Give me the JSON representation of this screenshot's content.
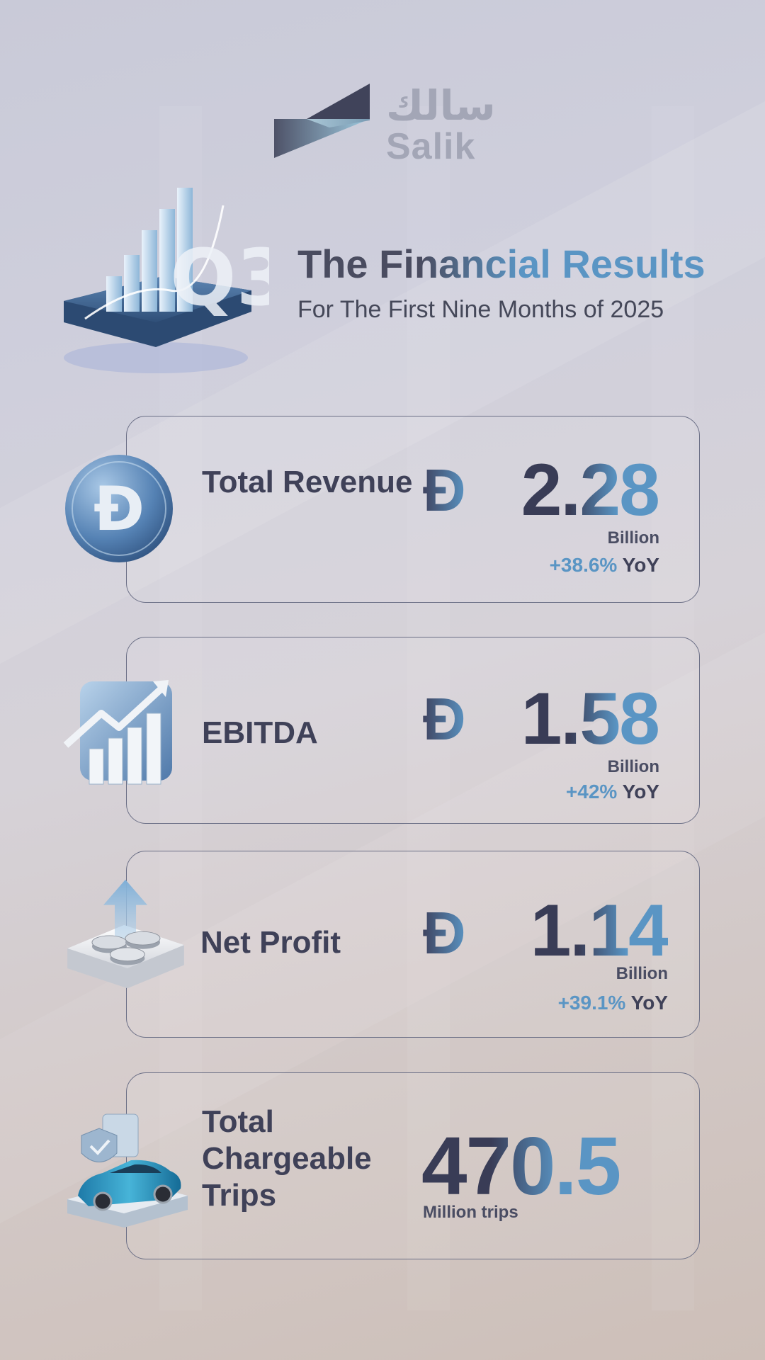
{
  "brand": {
    "name_ar": "سالك",
    "name_en": "Salik",
    "colors": {
      "dark": "#3f4158",
      "accent": "#5a95c4"
    }
  },
  "header": {
    "title": "The Financial Results",
    "subtitle": "For The First Nine Months of 2025",
    "badge": "Q3",
    "illustration": "q3-bar-chart-icon"
  },
  "metrics": [
    {
      "label": "Total Revenue",
      "currency_symbol": "Ð",
      "value": "2.28",
      "unit": "Billion",
      "yoy_change": "+38.6%",
      "yoy_label": "YoY",
      "icon": "dirham-coin-icon"
    },
    {
      "label": "EBITDA",
      "currency_symbol": "Ð",
      "value": "1.58",
      "unit": "Billion",
      "yoy_change": "+42%",
      "yoy_label": "YoY",
      "icon": "growth-chart-icon"
    },
    {
      "label": "Net Profit",
      "currency_symbol": "Ð",
      "value": "1.14",
      "unit": "Billion",
      "yoy_change": "+39.1%",
      "yoy_label": "YoY",
      "icon": "coins-arrow-icon"
    },
    {
      "label_lines": [
        "Total",
        "Chargeable",
        "Trips"
      ],
      "value": "470.5",
      "unit": "Million trips",
      "icon": "car-shield-icon"
    }
  ]
}
